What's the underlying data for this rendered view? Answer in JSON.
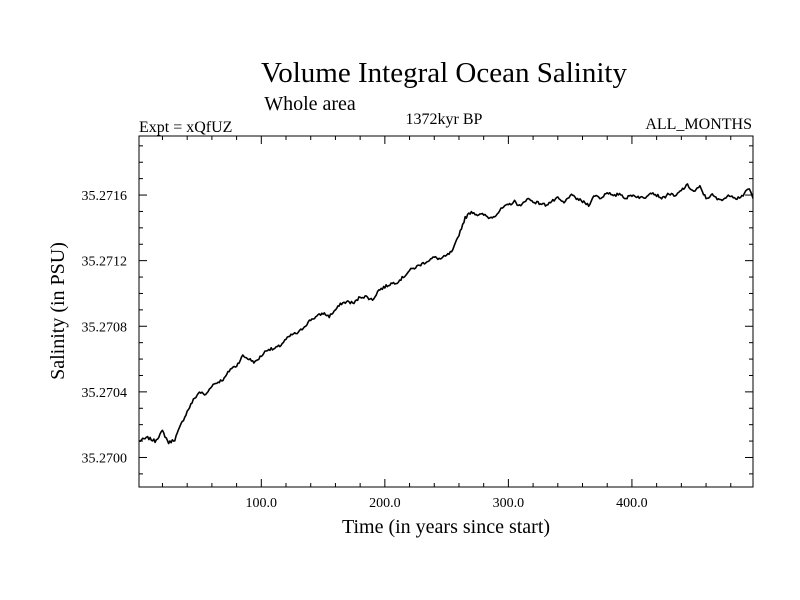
{
  "chart_data": {
    "type": "line",
    "title": "Volume Integral Ocean Salinity",
    "subtitle": "Whole area",
    "header_left": "Expt = xQfUZ",
    "header_center": "1372kyr BP",
    "header_right": "ALL_MONTHS",
    "xlabel": "Time (in years since start)",
    "ylabel": "Salinity (in PSU)",
    "xlim": [
      1,
      498
    ],
    "ylim": [
      35.26982,
      35.27196
    ],
    "x_ticks": [
      100,
      200,
      300,
      400
    ],
    "x_tick_labels": [
      "100.0",
      "200.0",
      "300.0",
      "400.0"
    ],
    "y_ticks": [
      35.27,
      35.2704,
      35.2708,
      35.2712,
      35.2716
    ],
    "y_tick_labels": [
      "35.2700",
      "35.2704",
      "35.2708",
      "35.2712",
      "35.2716"
    ],
    "grid": false,
    "line_color": "#000000",
    "series": [
      {
        "name": "Salinity",
        "x": [
          1,
          8,
          14,
          20,
          25,
          30,
          35,
          40,
          45,
          50,
          55,
          60,
          65,
          70,
          75,
          80,
          85,
          90,
          95,
          100,
          105,
          110,
          115,
          120,
          125,
          130,
          135,
          140,
          145,
          150,
          155,
          160,
          165,
          170,
          175,
          180,
          185,
          190,
          195,
          200,
          205,
          210,
          215,
          220,
          225,
          230,
          235,
          240,
          245,
          250,
          255,
          260,
          265,
          270,
          275,
          280,
          285,
          290,
          295,
          300,
          305,
          310,
          315,
          320,
          325,
          330,
          335,
          340,
          345,
          350,
          355,
          360,
          365,
          370,
          375,
          380,
          385,
          390,
          395,
          400,
          405,
          410,
          415,
          420,
          425,
          430,
          435,
          440,
          445,
          450,
          455,
          460,
          465,
          470,
          475,
          480,
          485,
          490,
          495,
          498
        ],
        "values": [
          35.2701,
          35.27012,
          35.2701,
          35.27016,
          35.27009,
          35.27011,
          35.2702,
          35.27028,
          35.27035,
          35.2704,
          35.27038,
          35.27044,
          35.27046,
          35.27048,
          35.27054,
          35.27056,
          35.27062,
          35.2706,
          35.27058,
          35.27062,
          35.27066,
          35.27066,
          35.27068,
          35.27072,
          35.27075,
          35.27076,
          35.2708,
          35.27084,
          35.27086,
          35.27088,
          35.27086,
          35.2709,
          35.27094,
          35.27095,
          35.27094,
          35.27098,
          35.27098,
          35.27096,
          35.27102,
          35.27104,
          35.27106,
          35.27107,
          35.2711,
          35.27114,
          35.27116,
          35.27118,
          35.2712,
          35.27122,
          35.27121,
          35.27123,
          35.27126,
          35.27136,
          35.27146,
          35.2715,
          35.27148,
          35.27148,
          35.27146,
          35.27148,
          35.27152,
          35.27154,
          35.27156,
          35.27153,
          35.27158,
          35.27156,
          35.27155,
          35.27154,
          35.27156,
          35.27158,
          35.27155,
          35.2716,
          35.27158,
          35.27156,
          35.27154,
          35.2716,
          35.27158,
          35.27162,
          35.27159,
          35.27161,
          35.27158,
          35.2716,
          35.27159,
          35.27158,
          35.27162,
          35.2716,
          35.27158,
          35.27161,
          35.27159,
          35.27163,
          35.27166,
          35.27162,
          35.27165,
          35.27158,
          35.2716,
          35.27157,
          35.27158,
          35.2716,
          35.27158,
          35.2716,
          35.27164,
          35.27158
        ]
      }
    ]
  }
}
